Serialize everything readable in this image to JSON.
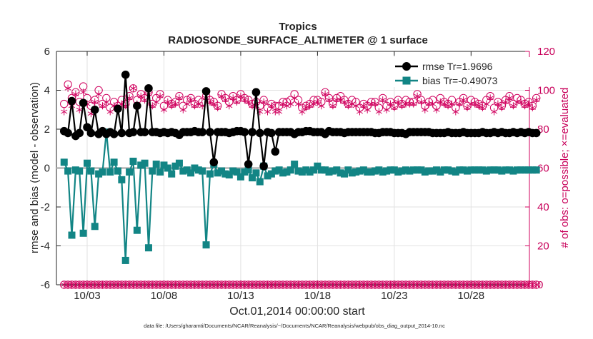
{
  "chart_data": {
    "type": "line",
    "title": "Tropics",
    "subtitle": "RADIOSONDE_SURFACE_ALTIMETER @ 1 surface",
    "xlabel": "Oct.01,2014 00:00:00 start",
    "ylabel_left": "rmse and bias (model - observation)",
    "ylabel_right": "# of obs: o=possible; ×=evaluated",
    "footnote": "data file: /Users/gharamti/Documents/NCAR/Reanalysis/~/Documents/NCAR/Reanalysis/webpub/obs_diag_output_2014-10.nc",
    "x_range_days": [
      0.5,
      31.3
    ],
    "ylim_left": [
      -6,
      6
    ],
    "ylim_right": [
      0,
      120
    ],
    "x_tick_positions_days": [
      2.5,
      7.5,
      12.5,
      17.5,
      22.5,
      27.5
    ],
    "x_tick_labels": [
      "10/03",
      "10/08",
      "10/13",
      "10/18",
      "10/23",
      "10/28"
    ],
    "y_ticks_left": [
      "-6",
      "-4",
      "-2",
      "0",
      "2",
      "4",
      "6"
    ],
    "y_ticks_right": [
      "0",
      "20",
      "40",
      "60",
      "80",
      "100",
      "120"
    ],
    "grid": true,
    "legend_position": "top-right",
    "colors": {
      "rmse": "#000000",
      "bias": "#128585",
      "obs": "#d0005e",
      "zero": "#b5b5b5"
    },
    "series": [
      {
        "name": "rmse",
        "legend_label": "rmse    Tr=1.9696",
        "x_step_days": 0.25,
        "values": [
          1.9,
          1.8,
          3.45,
          1.65,
          1.8,
          3.35,
          2.1,
          1.8,
          3.0,
          1.75,
          1.9,
          1.75,
          1.85,
          1.75,
          3.05,
          1.8,
          4.8,
          1.8,
          1.85,
          3.2,
          1.85,
          1.85,
          4.1,
          1.85,
          1.85,
          1.8,
          1.85,
          1.8,
          1.85,
          1.8,
          1.7,
          1.85,
          1.85,
          1.85,
          1.9,
          1.85,
          1.85,
          3.95,
          1.85,
          0.3,
          1.85,
          1.85,
          1.85,
          1.8,
          1.85,
          1.9,
          1.9,
          1.85,
          0.2,
          1.85,
          3.9,
          1.8,
          0.1,
          1.85,
          1.8,
          0.85,
          1.85,
          1.85,
          1.85,
          1.85,
          1.75,
          1.85,
          1.85,
          1.9,
          1.9,
          1.85,
          1.85,
          1.85,
          1.75,
          1.9,
          1.85,
          1.85,
          1.85,
          1.8,
          1.85,
          1.85,
          1.85,
          1.85,
          1.85,
          1.85,
          1.85,
          1.8,
          1.8,
          1.85,
          1.85,
          1.85,
          1.8,
          1.8,
          1.8,
          1.75,
          1.85,
          1.85,
          1.85,
          1.85,
          1.85,
          1.85,
          1.8,
          1.8,
          1.8,
          1.8,
          1.85,
          1.8,
          1.8,
          1.8,
          1.85,
          1.8,
          1.8,
          1.8,
          1.8,
          1.85,
          1.8,
          1.8,
          1.85,
          1.8,
          1.85,
          1.8,
          1.8,
          1.85,
          1.8,
          1.85,
          1.8,
          1.85,
          1.8,
          1.8
        ]
      },
      {
        "name": "bias",
        "legend_label": "bias    Tr=-0.49073",
        "x_step_days": 0.25,
        "values": [
          0.3,
          -0.15,
          -3.45,
          -0.1,
          -0.15,
          -3.35,
          0.25,
          -0.15,
          -3.0,
          -0.3,
          -0.2,
          1.85,
          -0.2,
          0.3,
          -0.15,
          -0.6,
          -4.75,
          -0.2,
          0.35,
          -3.2,
          0.15,
          0.25,
          -4.1,
          -0.15,
          0.2,
          -0.2,
          0.15,
          0.0,
          -0.3,
          0.1,
          0.25,
          -0.15,
          -0.1,
          -0.25,
          0.0,
          -0.1,
          -0.15,
          -3.95,
          -0.3,
          0.2,
          -0.25,
          -0.15,
          -0.3,
          -0.35,
          -0.15,
          -0.2,
          -0.45,
          -0.2,
          -0.1,
          -0.5,
          -0.25,
          -0.7,
          0.1,
          -0.4,
          -0.3,
          -0.15,
          -0.1,
          -0.25,
          -0.2,
          -0.1,
          0.2,
          -0.15,
          -0.2,
          -0.1,
          -0.2,
          -0.1,
          0.1,
          -0.1,
          -0.1,
          -0.2,
          -0.15,
          -0.1,
          -0.25,
          -0.3,
          -0.1,
          -0.25,
          -0.2,
          -0.15,
          -0.1,
          -0.2,
          -0.2,
          -0.15,
          -0.1,
          -0.2,
          -0.15,
          -0.1,
          -0.1,
          -0.2,
          -0.15,
          -0.1,
          -0.15,
          -0.1,
          -0.1,
          -0.1,
          -0.2,
          -0.15,
          -0.15,
          -0.1,
          -0.2,
          -0.1,
          -0.1,
          -0.15,
          -0.2,
          -0.1,
          -0.1,
          -0.15,
          -0.1,
          -0.1,
          -0.1,
          -0.1,
          -0.15,
          -0.1,
          -0.1,
          -0.1,
          -0.15,
          -0.1,
          -0.1,
          -0.15,
          -0.1,
          -0.1,
          -0.1,
          -0.1,
          -0.1,
          -0.1
        ]
      },
      {
        "name": "obs possible (o)",
        "axis": "right",
        "x_step_days": 0.25,
        "values": [
          93,
          103,
          96,
          99,
          94,
          102,
          96,
          92,
          95,
          100,
          93,
          96,
          91,
          94,
          92,
          95,
          93,
          97,
          101,
          95,
          98,
          96,
          99,
          93,
          96,
          98,
          92,
          95,
          93,
          94,
          97,
          92,
          95,
          96,
          93,
          95,
          94,
          97,
          95,
          94,
          92,
          98,
          96,
          94,
          97,
          95,
          98,
          96,
          95,
          93,
          94,
          92,
          95,
          91,
          93,
          92,
          92,
          94,
          94,
          95,
          98,
          95,
          91,
          92,
          93,
          95,
          95,
          94,
          99,
          96,
          93,
          96,
          97,
          95,
          93,
          95,
          94,
          91,
          93,
          92,
          94,
          94,
          91,
          96,
          92,
          94,
          92,
          95,
          93,
          95,
          94,
          94,
          98,
          95,
          92,
          94,
          95,
          92,
          96,
          94,
          93,
          95,
          91,
          94,
          96,
          92,
          95,
          94,
          93,
          92,
          95,
          97,
          91,
          94,
          92,
          95,
          97,
          93,
          96,
          95,
          93,
          94,
          92,
          96
        ]
      },
      {
        "name": "obs evaluated (×)",
        "axis": "right",
        "x_step_days": 0.25,
        "values": [
          89,
          101,
          92,
          98,
          90,
          99,
          93,
          88,
          94,
          98,
          92,
          94,
          89,
          92,
          91,
          93,
          92,
          96,
          101,
          93,
          97,
          95,
          98,
          92,
          94,
          97,
          90,
          94,
          92,
          93,
          96,
          90,
          93,
          95,
          92,
          93,
          92,
          96,
          94,
          93,
          91,
          97,
          95,
          92,
          96,
          94,
          97,
          95,
          94,
          92,
          92,
          89,
          94,
          89,
          92,
          89,
          89,
          93,
          92,
          93,
          96,
          93,
          89,
          91,
          92,
          93,
          94,
          92,
          98,
          95,
          92,
          95,
          95,
          94,
          92,
          93,
          92,
          89,
          92,
          90,
          93,
          93,
          89,
          95,
          90,
          93,
          91,
          94,
          92,
          93,
          93,
          93,
          97,
          94,
          90,
          93,
          93,
          90,
          94,
          93,
          92,
          93,
          89,
          93,
          95,
          91,
          93,
          93,
          92,
          91,
          93,
          96,
          89,
          93,
          91,
          94,
          96,
          92,
          94,
          94,
          92,
          93,
          91,
          95
        ]
      }
    ]
  }
}
